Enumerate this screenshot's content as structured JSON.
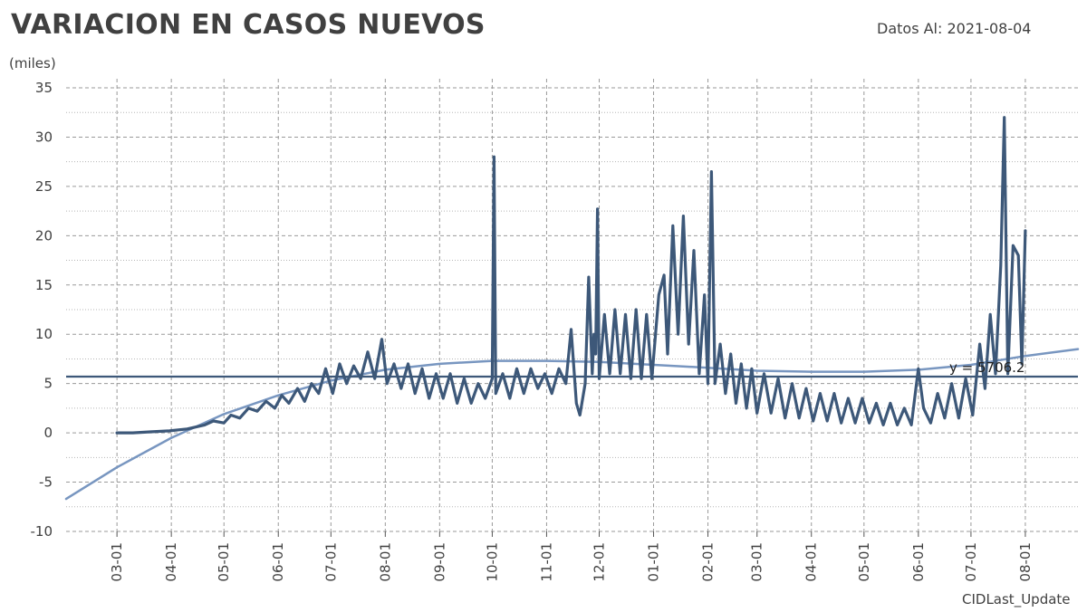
{
  "header": {
    "title": "VARIACION EN CASOS NUEVOS",
    "date_label": "Datos Al: 2021-08-04"
  },
  "footer": {
    "text": "CIDLast_Update"
  },
  "colors": {
    "series": "#3d5879",
    "trend": "#7896c0",
    "mean": "#3d5879",
    "grid": "#9a9a9a"
  },
  "chart_data": {
    "type": "line",
    "ylabel": "(miles)",
    "ylim": [
      -10,
      35
    ],
    "ytick_values": [
      -10,
      -5,
      0,
      5,
      10,
      15,
      20,
      25,
      30,
      35
    ],
    "ytick_labels": [
      "-10",
      "-5",
      "0",
      "5",
      "10",
      "15",
      "20",
      "25",
      "30",
      "35"
    ],
    "xtick_labels": [
      "03-01",
      "04-01",
      "05-01",
      "06-01",
      "07-01",
      "08-01",
      "09-01",
      "10-01",
      "11-01",
      "12-01",
      "01-01",
      "02-01",
      "03-01",
      "04-01",
      "05-01",
      "06-01",
      "07-01",
      "08-01"
    ],
    "xtick_dates": [
      "2020-03-01",
      "2020-04-01",
      "2020-05-01",
      "2020-06-01",
      "2020-07-01",
      "2020-08-01",
      "2020-09-01",
      "2020-10-01",
      "2020-11-01",
      "2020-12-01",
      "2021-01-01",
      "2021-02-01",
      "2021-03-01",
      "2021-04-01",
      "2021-05-01",
      "2021-06-01",
      "2021-07-01",
      "2021-08-01"
    ],
    "xlim": [
      "2020-02-01",
      "2021-08-31"
    ],
    "grid": true,
    "mean_line": {
      "value": 5.7062,
      "label": "y = 5706.2"
    },
    "series": [
      {
        "points": [
          [
            "2020-03-01",
            0.0
          ],
          [
            "2020-03-10",
            0.0
          ],
          [
            "2020-03-20",
            0.1
          ],
          [
            "2020-03-31",
            0.2
          ],
          [
            "2020-04-10",
            0.4
          ],
          [
            "2020-04-20",
            0.8
          ],
          [
            "2020-04-25",
            1.2
          ],
          [
            "2020-05-01",
            1.0
          ],
          [
            "2020-05-05",
            1.8
          ],
          [
            "2020-05-10",
            1.5
          ],
          [
            "2020-05-15",
            2.5
          ],
          [
            "2020-05-20",
            2.2
          ],
          [
            "2020-05-25",
            3.2
          ],
          [
            "2020-05-30",
            2.5
          ],
          [
            "2020-06-03",
            3.8
          ],
          [
            "2020-06-07",
            3.0
          ],
          [
            "2020-06-12",
            4.5
          ],
          [
            "2020-06-16",
            3.2
          ],
          [
            "2020-06-20",
            5.0
          ],
          [
            "2020-06-24",
            4.0
          ],
          [
            "2020-06-28",
            6.5
          ],
          [
            "2020-07-02",
            4.0
          ],
          [
            "2020-07-06",
            7.0
          ],
          [
            "2020-07-10",
            5.0
          ],
          [
            "2020-07-14",
            6.8
          ],
          [
            "2020-07-18",
            5.5
          ],
          [
            "2020-07-22",
            8.2
          ],
          [
            "2020-07-26",
            5.5
          ],
          [
            "2020-07-30",
            9.5
          ],
          [
            "2020-08-02",
            5.0
          ],
          [
            "2020-08-06",
            7.0
          ],
          [
            "2020-08-10",
            4.5
          ],
          [
            "2020-08-14",
            7.0
          ],
          [
            "2020-08-18",
            4.0
          ],
          [
            "2020-08-22",
            6.5
          ],
          [
            "2020-08-26",
            3.5
          ],
          [
            "2020-08-30",
            6.0
          ],
          [
            "2020-09-03",
            3.5
          ],
          [
            "2020-09-07",
            6.0
          ],
          [
            "2020-09-11",
            3.0
          ],
          [
            "2020-09-15",
            5.5
          ],
          [
            "2020-09-19",
            3.0
          ],
          [
            "2020-09-23",
            5.0
          ],
          [
            "2020-09-27",
            3.5
          ],
          [
            "2020-10-01",
            5.5
          ],
          [
            "2020-10-02",
            28.0
          ],
          [
            "2020-10-03",
            4.0
          ],
          [
            "2020-10-07",
            6.0
          ],
          [
            "2020-10-11",
            3.5
          ],
          [
            "2020-10-15",
            6.5
          ],
          [
            "2020-10-19",
            4.0
          ],
          [
            "2020-10-23",
            6.5
          ],
          [
            "2020-10-27",
            4.5
          ],
          [
            "2020-10-31",
            6.0
          ],
          [
            "2020-11-04",
            4.0
          ],
          [
            "2020-11-08",
            6.5
          ],
          [
            "2020-11-12",
            5.0
          ],
          [
            "2020-11-15",
            10.5
          ],
          [
            "2020-11-18",
            3.0
          ],
          [
            "2020-11-20",
            1.8
          ],
          [
            "2020-11-23",
            5.0
          ],
          [
            "2020-11-25",
            15.8
          ],
          [
            "2020-11-27",
            6.0
          ],
          [
            "2020-11-28",
            10.0
          ],
          [
            "2020-11-29",
            8.0
          ],
          [
            "2020-11-30",
            22.7
          ],
          [
            "2020-12-01",
            5.5
          ],
          [
            "2020-12-04",
            12.0
          ],
          [
            "2020-12-07",
            6.0
          ],
          [
            "2020-12-10",
            12.5
          ],
          [
            "2020-12-13",
            6.0
          ],
          [
            "2020-12-16",
            12.0
          ],
          [
            "2020-12-19",
            5.5
          ],
          [
            "2020-12-22",
            12.5
          ],
          [
            "2020-12-25",
            5.5
          ],
          [
            "2020-12-28",
            12.0
          ],
          [
            "2020-12-31",
            5.5
          ],
          [
            "2021-01-04",
            14.0
          ],
          [
            "2021-01-07",
            16.0
          ],
          [
            "2021-01-09",
            8.0
          ],
          [
            "2021-01-12",
            21.0
          ],
          [
            "2021-01-15",
            10.0
          ],
          [
            "2021-01-18",
            22.0
          ],
          [
            "2021-01-21",
            9.0
          ],
          [
            "2021-01-24",
            18.5
          ],
          [
            "2021-01-27",
            6.0
          ],
          [
            "2021-01-30",
            14.0
          ],
          [
            "2021-02-01",
            5.0
          ],
          [
            "2021-02-03",
            26.5
          ],
          [
            "2021-02-05",
            5.0
          ],
          [
            "2021-02-08",
            9.0
          ],
          [
            "2021-02-11",
            4.0
          ],
          [
            "2021-02-14",
            8.0
          ],
          [
            "2021-02-17",
            3.0
          ],
          [
            "2021-02-20",
            7.0
          ],
          [
            "2021-02-23",
            2.5
          ],
          [
            "2021-02-26",
            6.5
          ],
          [
            "2021-03-01",
            2.0
          ],
          [
            "2021-03-05",
            6.0
          ],
          [
            "2021-03-09",
            2.0
          ],
          [
            "2021-03-13",
            5.5
          ],
          [
            "2021-03-17",
            1.5
          ],
          [
            "2021-03-21",
            5.0
          ],
          [
            "2021-03-25",
            1.5
          ],
          [
            "2021-03-29",
            4.5
          ],
          [
            "2021-04-02",
            1.2
          ],
          [
            "2021-04-06",
            4.0
          ],
          [
            "2021-04-10",
            1.2
          ],
          [
            "2021-04-14",
            4.0
          ],
          [
            "2021-04-18",
            1.0
          ],
          [
            "2021-04-22",
            3.5
          ],
          [
            "2021-04-26",
            1.0
          ],
          [
            "2021-04-30",
            3.5
          ],
          [
            "2021-05-04",
            1.0
          ],
          [
            "2021-05-08",
            3.0
          ],
          [
            "2021-05-12",
            0.8
          ],
          [
            "2021-05-16",
            3.0
          ],
          [
            "2021-05-20",
            0.8
          ],
          [
            "2021-05-24",
            2.5
          ],
          [
            "2021-05-28",
            0.8
          ],
          [
            "2021-06-01",
            6.5
          ],
          [
            "2021-06-04",
            2.5
          ],
          [
            "2021-06-08",
            1.0
          ],
          [
            "2021-06-12",
            4.0
          ],
          [
            "2021-06-16",
            1.5
          ],
          [
            "2021-06-20",
            5.0
          ],
          [
            "2021-06-24",
            1.5
          ],
          [
            "2021-06-28",
            5.5
          ],
          [
            "2021-07-02",
            1.8
          ],
          [
            "2021-07-06",
            9.0
          ],
          [
            "2021-07-09",
            4.5
          ],
          [
            "2021-07-12",
            12.0
          ],
          [
            "2021-07-15",
            6.0
          ],
          [
            "2021-07-18",
            17.0
          ],
          [
            "2021-07-20",
            32.0
          ],
          [
            "2021-07-22",
            6.0
          ],
          [
            "2021-07-25",
            19.0
          ],
          [
            "2021-07-28",
            18.0
          ],
          [
            "2021-07-30",
            7.0
          ],
          [
            "2021-08-01",
            20.5
          ]
        ]
      },
      {
        "points": [
          [
            "2020-02-01",
            -6.7
          ],
          [
            "2020-03-01",
            -3.5
          ],
          [
            "2020-04-01",
            -0.5
          ],
          [
            "2020-05-01",
            1.9
          ],
          [
            "2020-06-01",
            3.8
          ],
          [
            "2020-07-01",
            5.3
          ],
          [
            "2020-08-01",
            6.4
          ],
          [
            "2020-09-01",
            7.0
          ],
          [
            "2020-10-01",
            7.3
          ],
          [
            "2020-11-01",
            7.3
          ],
          [
            "2020-12-01",
            7.2
          ],
          [
            "2021-01-01",
            6.9
          ],
          [
            "2021-02-01",
            6.6
          ],
          [
            "2021-03-01",
            6.3
          ],
          [
            "2021-04-01",
            6.2
          ],
          [
            "2021-05-01",
            6.2
          ],
          [
            "2021-06-01",
            6.4
          ],
          [
            "2021-07-01",
            6.9
          ],
          [
            "2021-08-01",
            7.8
          ],
          [
            "2021-08-31",
            8.5
          ]
        ]
      }
    ]
  }
}
